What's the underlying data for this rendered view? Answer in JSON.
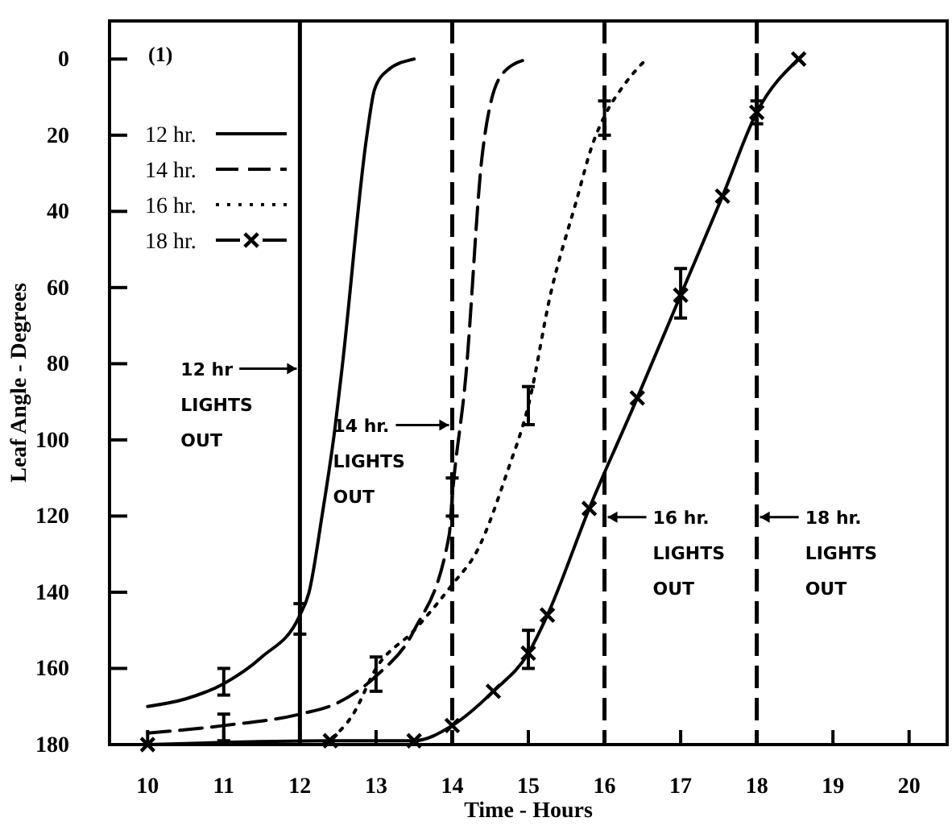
{
  "chart_data": {
    "type": "line",
    "xlabel": "Time  -  Hours",
    "ylabel": "Leaf Angle  -  Degrees",
    "annotations": [
      "(1)"
    ],
    "xlim": [
      9.5,
      20.5
    ],
    "xticks": [
      10,
      11,
      12,
      13,
      14,
      15,
      16,
      17,
      18,
      19,
      20
    ],
    "ylim": [
      180,
      -10
    ],
    "yticks": [
      0,
      20,
      40,
      60,
      80,
      100,
      120,
      140,
      160,
      180
    ],
    "legend": "top left",
    "grid": false,
    "ref_lines": [
      {
        "axis": "x",
        "value": 12,
        "label": "12 hr\nLIGHTS\nOUT",
        "line_style": "solid"
      },
      {
        "axis": "x",
        "value": 14,
        "label": "14 hr.\nLIGHTS\nOUT",
        "line_style": "dashed"
      },
      {
        "axis": "x",
        "value": 16,
        "label": "16 hr.\nLIGHTS\nOUT",
        "line_style": "dashed"
      },
      {
        "axis": "x",
        "value": 18,
        "label": "18 hr.\nLIGHTS\nOUT",
        "line_style": "dashed"
      }
    ],
    "series": [
      {
        "name": "12 hr.",
        "color": "#000000",
        "line_style": "solid",
        "marker": "none",
        "x": [
          10,
          10.5,
          11,
          11.5,
          12,
          12.12,
          12.29,
          12.46,
          12.56,
          12.88,
          12.98,
          13.15,
          13.5
        ],
        "values": [
          170,
          168,
          164,
          157,
          146,
          140,
          120,
          97,
          80,
          20,
          8,
          3,
          0
        ],
        "errors": [
          null,
          null,
          [
            160,
            167
          ],
          null,
          [
            143,
            151
          ],
          null,
          null,
          null,
          null,
          null,
          null,
          null,
          null
        ]
      },
      {
        "name": "14 hr.",
        "color": "#000000",
        "line_style": "dashed",
        "marker": "none",
        "x": [
          10,
          11,
          12,
          12.5,
          13,
          13.5,
          13.96,
          14,
          14.18,
          14.39,
          14.5,
          14.7,
          15
        ],
        "values": [
          177,
          175,
          172,
          169,
          162,
          150,
          125,
          115,
          83,
          26,
          12,
          3,
          0
        ],
        "errors": [
          null,
          [
            172,
            179
          ],
          null,
          null,
          [
            157,
            166
          ],
          null,
          null,
          [
            110,
            120
          ],
          null,
          null,
          null,
          null,
          null
        ]
      },
      {
        "name": "16 hr.",
        "color": "#000000",
        "line_style": "dotted",
        "marker": "none",
        "x": [
          12.3,
          12.7,
          13,
          13.5,
          14,
          14.33,
          14.73,
          15,
          15.3,
          15.62,
          15.85,
          16,
          16.25,
          16.55
        ],
        "values": [
          180,
          172,
          160,
          150,
          138,
          129,
          108,
          91,
          61,
          38,
          22,
          15,
          7,
          0
        ],
        "errors": [
          null,
          null,
          null,
          null,
          null,
          null,
          null,
          [
            86,
            96
          ],
          null,
          null,
          null,
          [
            11,
            20
          ],
          null,
          null
        ]
      },
      {
        "name": "18 hr.",
        "color": "#000000",
        "line_style": "solid",
        "marker": "cross",
        "x": [
          10,
          12.4,
          13.5,
          14,
          14.54,
          15,
          15.25,
          15.8,
          16.43,
          17,
          17.55,
          18,
          18.55
        ],
        "values": [
          180,
          179,
          179,
          175,
          166,
          156,
          146,
          118,
          89,
          62,
          36,
          14,
          0
        ],
        "errors": [
          null,
          null,
          null,
          null,
          null,
          [
            150,
            160
          ],
          null,
          null,
          null,
          [
            55,
            68
          ],
          null,
          [
            11,
            17
          ],
          null
        ]
      }
    ]
  }
}
